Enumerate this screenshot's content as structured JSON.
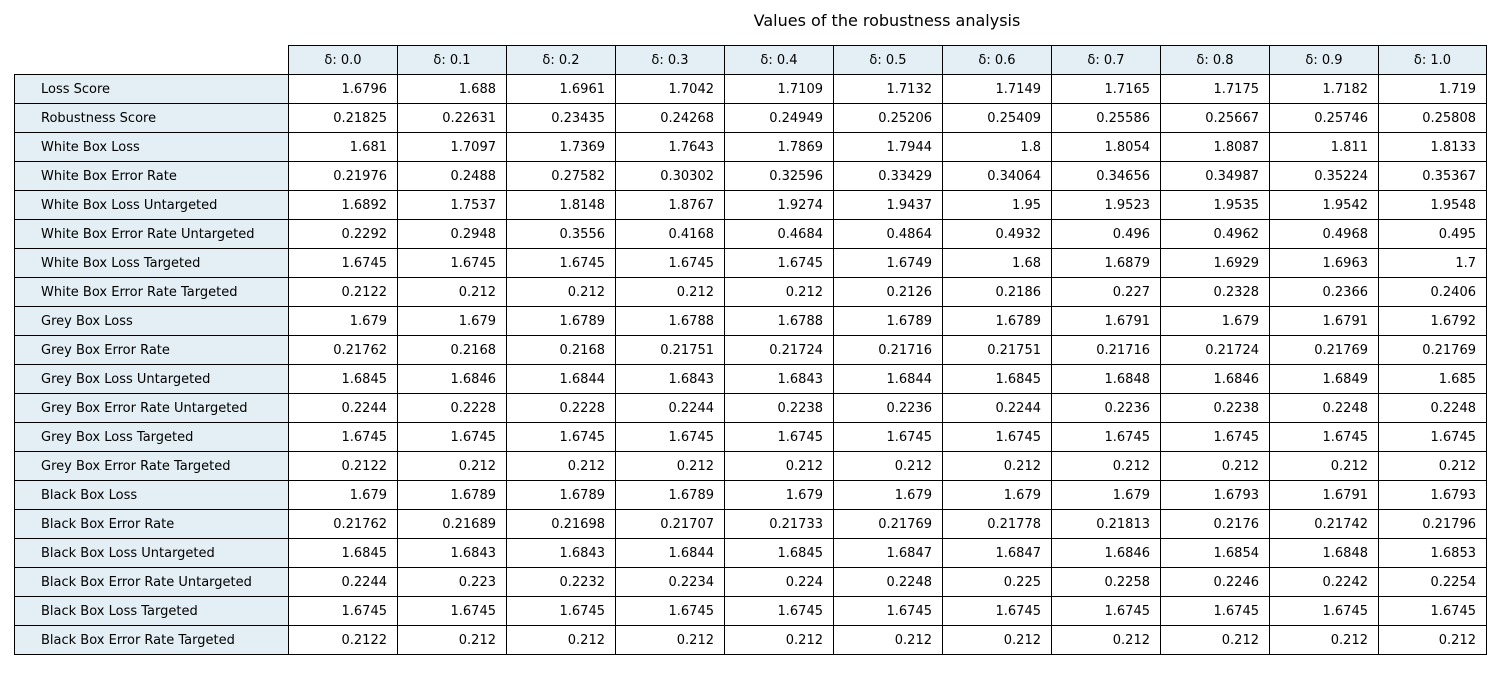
{
  "chart_data": {
    "type": "table",
    "title": "Values of the robustness analysis",
    "columns": [
      "δ: 0.0",
      "δ: 0.1",
      "δ: 0.2",
      "δ: 0.3",
      "δ: 0.4",
      "δ: 0.5",
      "δ: 0.6",
      "δ: 0.7",
      "δ: 0.8",
      "δ: 0.9",
      "δ: 1.0"
    ],
    "rows": [
      {
        "label": "Loss Score",
        "values": [
          "1.6796",
          "1.688",
          "1.6961",
          "1.7042",
          "1.7109",
          "1.7132",
          "1.7149",
          "1.7165",
          "1.7175",
          "1.7182",
          "1.719"
        ]
      },
      {
        "label": "Robustness Score",
        "values": [
          "0.21825",
          "0.22631",
          "0.23435",
          "0.24268",
          "0.24949",
          "0.25206",
          "0.25409",
          "0.25586",
          "0.25667",
          "0.25746",
          "0.25808"
        ]
      },
      {
        "label": "White Box Loss",
        "values": [
          "1.681",
          "1.7097",
          "1.7369",
          "1.7643",
          "1.7869",
          "1.7944",
          "1.8",
          "1.8054",
          "1.8087",
          "1.811",
          "1.8133"
        ]
      },
      {
        "label": "White Box Error Rate",
        "values": [
          "0.21976",
          "0.2488",
          "0.27582",
          "0.30302",
          "0.32596",
          "0.33429",
          "0.34064",
          "0.34656",
          "0.34987",
          "0.35224",
          "0.35367"
        ]
      },
      {
        "label": "White Box Loss Untargeted",
        "values": [
          "1.6892",
          "1.7537",
          "1.8148",
          "1.8767",
          "1.9274",
          "1.9437",
          "1.95",
          "1.9523",
          "1.9535",
          "1.9542",
          "1.9548"
        ]
      },
      {
        "label": "White Box Error Rate Untargeted",
        "values": [
          "0.2292",
          "0.2948",
          "0.3556",
          "0.4168",
          "0.4684",
          "0.4864",
          "0.4932",
          "0.496",
          "0.4962",
          "0.4968",
          "0.495"
        ]
      },
      {
        "label": "White Box Loss Targeted",
        "values": [
          "1.6745",
          "1.6745",
          "1.6745",
          "1.6745",
          "1.6745",
          "1.6749",
          "1.68",
          "1.6879",
          "1.6929",
          "1.6963",
          "1.7"
        ]
      },
      {
        "label": "White Box Error Rate Targeted",
        "values": [
          "0.2122",
          "0.212",
          "0.212",
          "0.212",
          "0.212",
          "0.2126",
          "0.2186",
          "0.227",
          "0.2328",
          "0.2366",
          "0.2406"
        ]
      },
      {
        "label": "Grey Box Loss",
        "values": [
          "1.679",
          "1.679",
          "1.6789",
          "1.6788",
          "1.6788",
          "1.6789",
          "1.6789",
          "1.6791",
          "1.679",
          "1.6791",
          "1.6792"
        ]
      },
      {
        "label": "Grey Box Error Rate",
        "values": [
          "0.21762",
          "0.2168",
          "0.2168",
          "0.21751",
          "0.21724",
          "0.21716",
          "0.21751",
          "0.21716",
          "0.21724",
          "0.21769",
          "0.21769"
        ]
      },
      {
        "label": "Grey Box Loss Untargeted",
        "values": [
          "1.6845",
          "1.6846",
          "1.6844",
          "1.6843",
          "1.6843",
          "1.6844",
          "1.6845",
          "1.6848",
          "1.6846",
          "1.6849",
          "1.685"
        ]
      },
      {
        "label": "Grey Box Error Rate Untargeted",
        "values": [
          "0.2244",
          "0.2228",
          "0.2228",
          "0.2244",
          "0.2238",
          "0.2236",
          "0.2244",
          "0.2236",
          "0.2238",
          "0.2248",
          "0.2248"
        ]
      },
      {
        "label": "Grey Box Loss Targeted",
        "values": [
          "1.6745",
          "1.6745",
          "1.6745",
          "1.6745",
          "1.6745",
          "1.6745",
          "1.6745",
          "1.6745",
          "1.6745",
          "1.6745",
          "1.6745"
        ]
      },
      {
        "label": "Grey Box Error Rate Targeted",
        "values": [
          "0.2122",
          "0.212",
          "0.212",
          "0.212",
          "0.212",
          "0.212",
          "0.212",
          "0.212",
          "0.212",
          "0.212",
          "0.212"
        ]
      },
      {
        "label": "Black Box Loss",
        "values": [
          "1.679",
          "1.6789",
          "1.6789",
          "1.6789",
          "1.679",
          "1.679",
          "1.679",
          "1.679",
          "1.6793",
          "1.6791",
          "1.6793"
        ]
      },
      {
        "label": "Black Box Error Rate",
        "values": [
          "0.21762",
          "0.21689",
          "0.21698",
          "0.21707",
          "0.21733",
          "0.21769",
          "0.21778",
          "0.21813",
          "0.2176",
          "0.21742",
          "0.21796"
        ]
      },
      {
        "label": "Black Box Loss Untargeted",
        "values": [
          "1.6845",
          "1.6843",
          "1.6843",
          "1.6844",
          "1.6845",
          "1.6847",
          "1.6847",
          "1.6846",
          "1.6854",
          "1.6848",
          "1.6853"
        ]
      },
      {
        "label": "Black Box Error Rate Untargeted",
        "values": [
          "0.2244",
          "0.223",
          "0.2232",
          "0.2234",
          "0.224",
          "0.2248",
          "0.225",
          "0.2258",
          "0.2246",
          "0.2242",
          "0.2254"
        ]
      },
      {
        "label": "Black Box Loss Targeted",
        "values": [
          "1.6745",
          "1.6745",
          "1.6745",
          "1.6745",
          "1.6745",
          "1.6745",
          "1.6745",
          "1.6745",
          "1.6745",
          "1.6745",
          "1.6745"
        ]
      },
      {
        "label": "Black Box Error Rate Targeted",
        "values": [
          "0.2122",
          "0.212",
          "0.212",
          "0.212",
          "0.212",
          "0.212",
          "0.212",
          "0.212",
          "0.212",
          "0.212",
          "0.212"
        ]
      }
    ],
    "colors": {
      "header_background": "#e3eff5",
      "cell_background": "#ffffff",
      "border": "#000000"
    }
  }
}
